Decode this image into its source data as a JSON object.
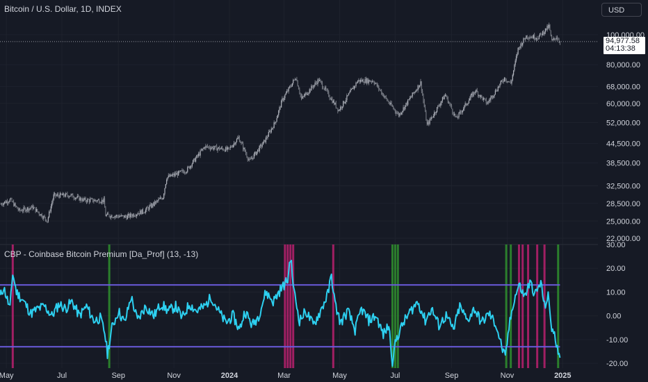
{
  "header": {
    "title": "Bitcoin / U.S. Dollar, 1D, INDEX",
    "currency_button": "USD"
  },
  "price_label": {
    "price": "94,977.58",
    "countdown": "04:13:38"
  },
  "indicator": {
    "title": "CBP - Coinbase Bitcoin Premium [Da_Prof] (13, -13)"
  },
  "colors": {
    "background": "#161a25",
    "grid": "#1e222d",
    "candles": "#8f939c",
    "premium_line": "#2dd0f0",
    "bands": "#6a5adc",
    "green_marker": "#2e8b2e",
    "red_marker": "#b0206a"
  },
  "chart_data": [
    {
      "type": "candlestick",
      "title": "Bitcoin / U.S. Dollar, 1D, INDEX",
      "y_scale": "log",
      "ylim": [
        21000,
        112000
      ],
      "y_ticks": [
        "100,000.00",
        "80,000.00",
        "68,000.00",
        "60,000.00",
        "52,000.00",
        "44,500.00",
        "38,500.00",
        "32,500.00",
        "28,500.00",
        "25,000.00",
        "22,000.00"
      ],
      "x_ticks": [
        "May",
        "Jul",
        "Sep",
        "Nov",
        "2024",
        "Mar",
        "May",
        "Jul",
        "Sep",
        "Nov",
        "2025"
      ],
      "x_range": [
        "2023-04-24",
        "2024-12-31"
      ],
      "last_price": 94977.58,
      "points": [
        [
          "2023-04-24",
          28300
        ],
        [
          "2023-05-05",
          29300
        ],
        [
          "2023-05-15",
          27000
        ],
        [
          "2023-05-30",
          27700
        ],
        [
          "2023-06-15",
          25100
        ],
        [
          "2023-06-22",
          30200
        ],
        [
          "2023-07-10",
          30300
        ],
        [
          "2023-07-25",
          29200
        ],
        [
          "2023-08-16",
          29100
        ],
        [
          "2023-08-18",
          26100
        ],
        [
          "2023-09-10",
          25800
        ],
        [
          "2023-09-30",
          27000
        ],
        [
          "2023-10-20",
          29900
        ],
        [
          "2023-10-24",
          34500
        ],
        [
          "2023-11-15",
          36500
        ],
        [
          "2023-12-05",
          43500
        ],
        [
          "2023-12-31",
          42500
        ],
        [
          "2024-01-11",
          46500
        ],
        [
          "2024-01-23",
          39000
        ],
        [
          "2024-02-08",
          45000
        ],
        [
          "2024-02-20",
          52000
        ],
        [
          "2024-02-28",
          61500
        ],
        [
          "2024-03-14",
          73000
        ],
        [
          "2024-03-20",
          62000
        ],
        [
          "2024-04-08",
          71500
        ],
        [
          "2024-04-30",
          57000
        ],
        [
          "2024-05-21",
          71000
        ],
        [
          "2024-06-07",
          71000
        ],
        [
          "2024-06-24",
          60300
        ],
        [
          "2024-07-05",
          55000
        ],
        [
          "2024-07-29",
          70000
        ],
        [
          "2024-08-05",
          51000
        ],
        [
          "2024-08-25",
          64000
        ],
        [
          "2024-09-06",
          53500
        ],
        [
          "2024-09-27",
          66000
        ],
        [
          "2024-10-10",
          60000
        ],
        [
          "2024-10-29",
          72500
        ],
        [
          "2024-11-05",
          69500
        ],
        [
          "2024-11-13",
          90000
        ],
        [
          "2024-11-22",
          99000
        ],
        [
          "2024-12-05",
          98000
        ],
        [
          "2024-12-17",
          106500
        ],
        [
          "2024-12-20",
          95000
        ],
        [
          "2024-12-25",
          98500
        ],
        [
          "2024-12-29",
          94977
        ]
      ]
    },
    {
      "type": "line",
      "title": "CBP - Coinbase Bitcoin Premium [Da_Prof] (13, -13)",
      "ylim": [
        -22,
        30
      ],
      "y_ticks": [
        "30.00",
        "20.00",
        "10.00",
        "0.00",
        "-10.00",
        "-20.00"
      ],
      "bands": [
        13,
        -13
      ],
      "points": [
        [
          "2023-04-24",
          8
        ],
        [
          "2023-04-28",
          12
        ],
        [
          "2023-05-05",
          3
        ],
        [
          "2023-05-08",
          18
        ],
        [
          "2023-05-12",
          10
        ],
        [
          "2023-05-20",
          6
        ],
        [
          "2023-05-28",
          1
        ],
        [
          "2023-06-05",
          3
        ],
        [
          "2023-06-12",
          4
        ],
        [
          "2023-06-20",
          0
        ],
        [
          "2023-06-28",
          5
        ],
        [
          "2023-07-05",
          3
        ],
        [
          "2023-07-12",
          6
        ],
        [
          "2023-07-20",
          0
        ],
        [
          "2023-07-28",
          4
        ],
        [
          "2023-08-05",
          -2
        ],
        [
          "2023-08-12",
          -1
        ],
        [
          "2023-08-17",
          -7
        ],
        [
          "2023-08-20",
          -16
        ],
        [
          "2023-08-25",
          -5
        ],
        [
          "2023-09-01",
          2
        ],
        [
          "2023-09-08",
          -3
        ],
        [
          "2023-09-15",
          8
        ],
        [
          "2023-09-22",
          -2
        ],
        [
          "2023-10-01",
          4
        ],
        [
          "2023-10-10",
          0
        ],
        [
          "2023-10-18",
          5
        ],
        [
          "2023-10-26",
          2
        ],
        [
          "2023-11-03",
          4
        ],
        [
          "2023-11-10",
          -1
        ],
        [
          "2023-11-18",
          5
        ],
        [
          "2023-11-26",
          2
        ],
        [
          "2023-12-05",
          4
        ],
        [
          "2023-12-12",
          8
        ],
        [
          "2023-12-20",
          2
        ],
        [
          "2023-12-28",
          -3
        ],
        [
          "2024-01-05",
          0
        ],
        [
          "2024-01-12",
          -6
        ],
        [
          "2024-01-18",
          2
        ],
        [
          "2024-01-26",
          -4
        ],
        [
          "2024-02-02",
          0
        ],
        [
          "2024-02-10",
          10
        ],
        [
          "2024-02-18",
          6
        ],
        [
          "2024-02-26",
          11
        ],
        [
          "2024-03-05",
          15
        ],
        [
          "2024-03-08",
          25
        ],
        [
          "2024-03-12",
          10
        ],
        [
          "2024-03-18",
          -2
        ],
        [
          "2024-03-25",
          2
        ],
        [
          "2024-04-02",
          -4
        ],
        [
          "2024-04-10",
          2
        ],
        [
          "2024-04-18",
          9
        ],
        [
          "2024-04-22",
          17
        ],
        [
          "2024-04-26",
          5
        ],
        [
          "2024-05-02",
          -3
        ],
        [
          "2024-05-10",
          2
        ],
        [
          "2024-05-18",
          -6
        ],
        [
          "2024-05-25",
          3
        ],
        [
          "2024-06-02",
          -2
        ],
        [
          "2024-06-10",
          0
        ],
        [
          "2024-06-18",
          -8
        ],
        [
          "2024-06-24",
          -4
        ],
        [
          "2024-06-28",
          -19
        ],
        [
          "2024-07-02",
          -10
        ],
        [
          "2024-07-10",
          -3
        ],
        [
          "2024-07-18",
          2
        ],
        [
          "2024-07-26",
          6
        ],
        [
          "2024-08-03",
          -2
        ],
        [
          "2024-08-10",
          3
        ],
        [
          "2024-08-18",
          -4
        ],
        [
          "2024-08-26",
          0
        ],
        [
          "2024-09-03",
          -6
        ],
        [
          "2024-09-10",
          4
        ],
        [
          "2024-09-18",
          -2
        ],
        [
          "2024-09-26",
          3
        ],
        [
          "2024-10-04",
          -3
        ],
        [
          "2024-10-12",
          1
        ],
        [
          "2024-10-20",
          -4
        ],
        [
          "2024-10-26",
          -13
        ],
        [
          "2024-10-30",
          -18
        ],
        [
          "2024-11-03",
          -5
        ],
        [
          "2024-11-08",
          6
        ],
        [
          "2024-11-14",
          13
        ],
        [
          "2024-11-20",
          8
        ],
        [
          "2024-11-26",
          14
        ],
        [
          "2024-12-02",
          9
        ],
        [
          "2024-12-08",
          14
        ],
        [
          "2024-12-12",
          4
        ],
        [
          "2024-12-16",
          8
        ],
        [
          "2024-12-20",
          -5
        ],
        [
          "2024-12-24",
          -10
        ],
        [
          "2024-12-27",
          -14
        ],
        [
          "2024-12-29",
          -17
        ]
      ],
      "markers": [
        {
          "date": "2023-05-08",
          "color": "red"
        },
        {
          "date": "2023-08-22",
          "color": "green"
        },
        {
          "date": "2024-03-02",
          "color": "red"
        },
        {
          "date": "2024-03-05",
          "color": "red"
        },
        {
          "date": "2024-03-08",
          "color": "red"
        },
        {
          "date": "2024-03-11",
          "color": "red"
        },
        {
          "date": "2024-04-24",
          "color": "red"
        },
        {
          "date": "2024-06-28",
          "color": "green"
        },
        {
          "date": "2024-07-01",
          "color": "green"
        },
        {
          "date": "2024-07-04",
          "color": "green"
        },
        {
          "date": "2024-10-31",
          "color": "green"
        },
        {
          "date": "2024-11-05",
          "color": "green"
        },
        {
          "date": "2024-11-14",
          "color": "red"
        },
        {
          "date": "2024-11-18",
          "color": "red"
        },
        {
          "date": "2024-11-24",
          "color": "red"
        },
        {
          "date": "2024-12-04",
          "color": "red"
        },
        {
          "date": "2024-12-12",
          "color": "red"
        },
        {
          "date": "2024-12-27",
          "color": "green"
        }
      ]
    }
  ]
}
